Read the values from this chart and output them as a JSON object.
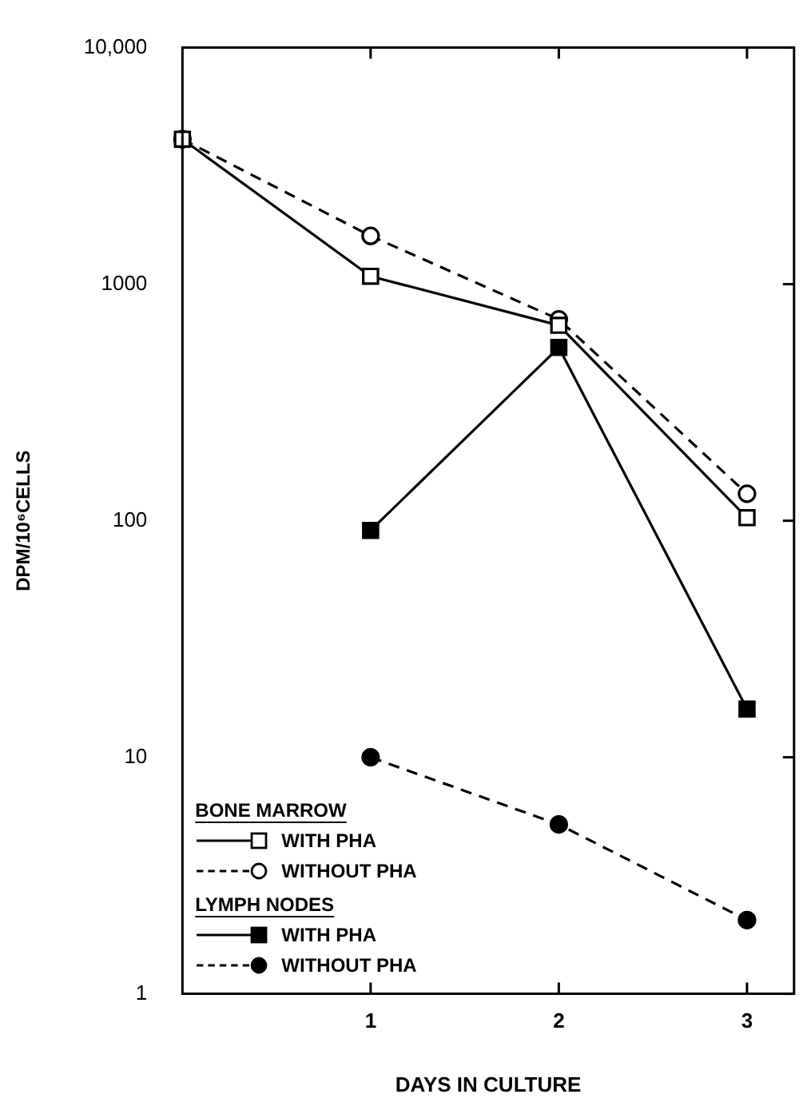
{
  "chart_data": {
    "type": "line",
    "xlabel": "DAYS IN CULTURE",
    "ylabel": "DPM/10⁶CELLS",
    "log": "y",
    "xlim": [
      0,
      3.25
    ],
    "xticks": [
      1,
      2,
      3
    ],
    "ylim": [
      1,
      10000
    ],
    "yticks": [
      1,
      10,
      100,
      1000,
      {
        "value": 10000,
        "label": "10,000"
      }
    ],
    "grid": false,
    "legend": "bottom left",
    "legend_title": null,
    "annotations": [
      "BONE MARROW",
      "LYMPH NODES"
    ],
    "x": [
      0,
      1,
      2,
      3
    ],
    "series": [
      {
        "name": "WITH PHA",
        "color": "#000000",
        "marker": "square",
        "line_style": "solid",
        "values": [
          4100,
          1080,
          670,
          103
        ]
      },
      {
        "name": "WITHOUT PHA",
        "color": "#000000",
        "marker": "circle",
        "line_style": "dashed",
        "values": [
          4100,
          1600,
          710,
          130
        ]
      },
      {
        "name": "WITH PHA",
        "color": "#000000",
        "marker": "square",
        "line_style": "solid",
        "values": [
          null,
          91,
          540,
          16
        ]
      },
      {
        "name": "WITHOUT PHA",
        "color": "#000000",
        "marker": "circle",
        "line_style": "dashed",
        "values": [
          null,
          10,
          5.2,
          2.05
        ]
      }
    ]
  }
}
